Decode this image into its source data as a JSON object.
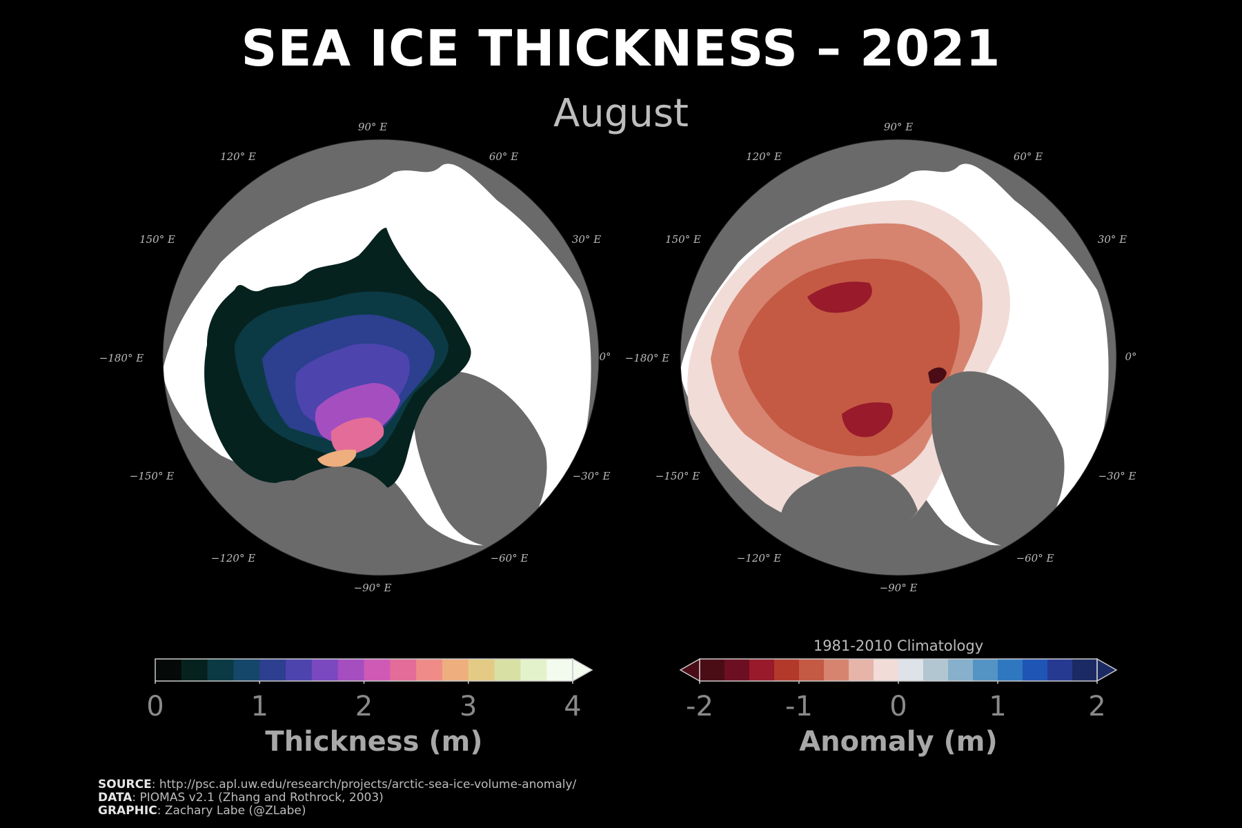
{
  "title": "SEA ICE THICKNESS – 2021",
  "subtitle": "August",
  "maps": {
    "lon_labels": [
      "90° E",
      "120° E",
      "60° E",
      "150° E",
      "30° E",
      "−180° E",
      "0°",
      "−150° E",
      "−30° E",
      "−120° E",
      "−60° E",
      "−90° E"
    ],
    "land_color": "#6a6a6a",
    "open_ocean_color": "#ffffff"
  },
  "chart_data": [
    {
      "type": "heatmap",
      "name": "thickness-map",
      "colorbar": {
        "label": "Thickness (m)",
        "ticks": [
          "0",
          "1",
          "2",
          "3",
          "4"
        ],
        "range": [
          0,
          4
        ],
        "extend": "max",
        "colors": [
          "#050a08",
          "#06221f",
          "#0b3a44",
          "#14476a",
          "#2d3f8f",
          "#4d44ae",
          "#7a48bf",
          "#a54ec0",
          "#cf5ab6",
          "#e46c99",
          "#ef8c88",
          "#eeae7e",
          "#e3cb86",
          "#d8e0a3",
          "#e4f2cc",
          "#f3fbee"
        ]
      }
    },
    {
      "type": "heatmap",
      "name": "anomaly-map",
      "colorbar": {
        "label": "Anomaly (m)",
        "note": "1981-2010 Climatology",
        "ticks": [
          "-2",
          "-1",
          "0",
          "1",
          "2"
        ],
        "range": [
          -2,
          2
        ],
        "extend": "both",
        "colors": [
          "#4a0d16",
          "#6d0f22",
          "#981a2b",
          "#b33a2b",
          "#c45a44",
          "#d68470",
          "#e6b4a8",
          "#f1dcd8",
          "#dde3e8",
          "#b2c6d2",
          "#86b0cb",
          "#5494c4",
          "#2f78c0",
          "#1f55b5",
          "#263a92",
          "#1c2a63"
        ]
      }
    }
  ],
  "credits": {
    "source_label": "SOURCE",
    "source_text": ": http://psc.apl.uw.edu/research/projects/arctic-sea-ice-volume-anomaly/",
    "data_label": "DATA",
    "data_text": ": PIOMAS v2.1 (Zhang and Rothrock, 2003)",
    "graphic_label": "GRAPHIC",
    "graphic_text": ": Zachary Labe (@ZLabe)"
  }
}
